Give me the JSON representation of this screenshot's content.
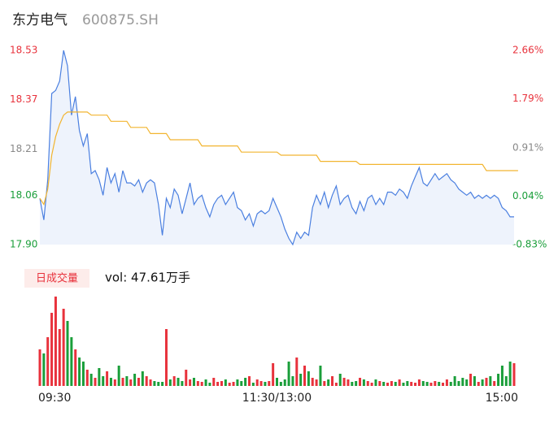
{
  "header": {
    "name": "东方电气",
    "code": "600875.SH"
  },
  "chart_data": [
    {
      "type": "line",
      "xlim": [
        0,
        120
      ],
      "xticks": [
        {
          "value": 0,
          "label": "09:30"
        },
        {
          "value": 60,
          "label": "11:30/13:00"
        },
        {
          "value": 120,
          "label": "15:00"
        }
      ],
      "ylim": [
        17.9,
        18.53
      ],
      "yticks": [
        {
          "value": 18.53,
          "label": "18.53"
        },
        {
          "value": 18.37,
          "label": "18.37"
        },
        {
          "value": 18.21,
          "label": "18.21"
        },
        {
          "value": 18.06,
          "label": "18.06"
        },
        {
          "value": 17.9,
          "label": "17.90"
        }
      ],
      "y2lim": [
        -0.83,
        2.66
      ],
      "y2ticks": [
        {
          "value": 2.66,
          "label": "2.66%"
        },
        {
          "value": 1.79,
          "label": "1.79%"
        },
        {
          "value": 0.91,
          "label": "0.91%"
        },
        {
          "value": 0.04,
          "label": "0.04%"
        },
        {
          "value": -0.83,
          "label": "-0.83%"
        }
      ],
      "tick_colors": [
        "#e8323c",
        "#e8323c",
        "#888888",
        "#1a9e3a",
        "#1a9e3a"
      ],
      "fill": "#eef3fc",
      "series": [
        {
          "color": "#4a7fe0",
          "values": [
            18.05,
            17.98,
            18.11,
            18.39,
            18.4,
            18.43,
            18.53,
            18.48,
            18.32,
            18.38,
            18.27,
            18.22,
            18.26,
            18.13,
            18.14,
            18.11,
            18.06,
            18.15,
            18.1,
            18.13,
            18.07,
            18.14,
            18.1,
            18.1,
            18.09,
            18.11,
            18.07,
            18.1,
            18.11,
            18.1,
            18.03,
            17.93,
            18.05,
            18.02,
            18.08,
            18.06,
            18.0,
            18.05,
            18.1,
            18.03,
            18.05,
            18.06,
            18.02,
            17.99,
            18.03,
            18.05,
            18.06,
            18.03,
            18.05,
            18.07,
            18.02,
            18.01,
            17.98,
            18.0,
            17.96,
            18.0,
            18.01,
            18.0,
            18.01,
            18.05,
            18.02,
            17.99,
            17.95,
            17.92,
            17.9,
            17.94,
            17.92,
            17.94,
            17.93,
            18.02,
            18.06,
            18.03,
            18.07,
            18.02,
            18.06,
            18.09,
            18.03,
            18.05,
            18.06,
            18.02,
            18.0,
            18.04,
            18.01,
            18.05,
            18.06,
            18.03,
            18.05,
            18.03,
            18.07,
            18.07,
            18.06,
            18.08,
            18.07,
            18.05,
            18.09,
            18.12,
            18.15,
            18.1,
            18.09,
            18.11,
            18.13,
            18.11,
            18.12,
            18.13,
            18.11,
            18.1,
            18.08,
            18.07,
            18.06,
            18.07,
            18.05,
            18.06,
            18.05,
            18.06,
            18.05,
            18.06,
            18.05,
            18.02,
            18.01,
            17.99,
            17.99
          ]
        },
        {
          "color": "#f2b530",
          "values": [
            18.05,
            18.03,
            18.08,
            18.19,
            18.25,
            18.29,
            18.32,
            18.33,
            18.33,
            18.33,
            18.33,
            18.33,
            18.33,
            18.32,
            18.32,
            18.32,
            18.32,
            18.32,
            18.3,
            18.3,
            18.3,
            18.3,
            18.3,
            18.28,
            18.28,
            18.28,
            18.28,
            18.28,
            18.26,
            18.26,
            18.26,
            18.26,
            18.26,
            18.24,
            18.24,
            18.24,
            18.24,
            18.24,
            18.24,
            18.24,
            18.24,
            18.22,
            18.22,
            18.22,
            18.22,
            18.22,
            18.22,
            18.22,
            18.22,
            18.22,
            18.22,
            18.2,
            18.2,
            18.2,
            18.2,
            18.2,
            18.2,
            18.2,
            18.2,
            18.2,
            18.2,
            18.19,
            18.19,
            18.19,
            18.19,
            18.19,
            18.19,
            18.19,
            18.19,
            18.19,
            18.19,
            18.17,
            18.17,
            18.17,
            18.17,
            18.17,
            18.17,
            18.17,
            18.17,
            18.17,
            18.17,
            18.16,
            18.16,
            18.16,
            18.16,
            18.16,
            18.16,
            18.16,
            18.16,
            18.16,
            18.16,
            18.16,
            18.16,
            18.16,
            18.16,
            18.16,
            18.16,
            18.16,
            18.16,
            18.16,
            18.16,
            18.16,
            18.16,
            18.16,
            18.16,
            18.16,
            18.16,
            18.16,
            18.16,
            18.16,
            18.16,
            18.16,
            18.16,
            18.14,
            18.14,
            18.14,
            18.14,
            18.14,
            18.14,
            18.14,
            18.14,
            18.14
          ]
        }
      ]
    },
    {
      "type": "bar",
      "title": "日成交量",
      "label": "vol: 47.61万手",
      "ylim": [
        0,
        11000
      ],
      "up_color": "#e8323c",
      "down_color": "#1a9e3a",
      "values": [
        4500,
        4000,
        6000,
        9000,
        11000,
        7000,
        9500,
        8000,
        6000,
        4500,
        3500,
        3000,
        2000,
        1500,
        1000,
        2200,
        1200,
        1800,
        1000,
        800,
        2500,
        1000,
        1200,
        800,
        1500,
        1000,
        1800,
        1200,
        800,
        600,
        500,
        500,
        7000,
        800,
        1200,
        1000,
        600,
        2000,
        800,
        1000,
        600,
        500,
        800,
        400,
        1000,
        500,
        600,
        800,
        400,
        500,
        800,
        600,
        1000,
        1200,
        400,
        800,
        600,
        500,
        600,
        2800,
        1000,
        500,
        800,
        3000,
        1200,
        3500,
        1500,
        2500,
        1800,
        1000,
        800,
        2500,
        600,
        800,
        1200,
        400,
        1500,
        1000,
        800,
        500,
        600,
        1000,
        800,
        600,
        400,
        800,
        600,
        500,
        400,
        600,
        500,
        800,
        400,
        600,
        500,
        400,
        800,
        600,
        500,
        400,
        600,
        500,
        400,
        800,
        500,
        1200,
        600,
        1000,
        800,
        1500,
        1200,
        500,
        800,
        1000,
        1200,
        600,
        1500,
        2500,
        1200,
        3000,
        2800
      ]
    }
  ]
}
